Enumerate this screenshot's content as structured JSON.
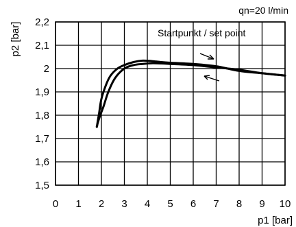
{
  "chart_data": {
    "type": "line",
    "title": "qn=20 l/min",
    "xlabel": "p1 [bar]",
    "ylabel": "p2 [bar]",
    "xlim": [
      0,
      10
    ],
    "ylim": [
      1.5,
      2.2
    ],
    "x_ticks": [
      "0",
      "1",
      "2",
      "3",
      "4",
      "5",
      "6",
      "7",
      "8",
      "9",
      "10"
    ],
    "y_ticks": [
      "1,5",
      "1,6",
      "1,7",
      "1,8",
      "1,9",
      "2",
      "2,1",
      "2,2"
    ],
    "grid": true,
    "annotation": "Startpunkt / set point",
    "series": [
      {
        "x": [
          10,
          9,
          8,
          7,
          6,
          5,
          4.6,
          4.2,
          3.8,
          3.4,
          3.0,
          2.6,
          2.3,
          2.1,
          1.95,
          1.85,
          1.8
        ],
        "y": [
          1.97,
          1.98,
          1.995,
          2.005,
          2.015,
          2.02,
          2.022,
          2.023,
          2.02,
          2.015,
          2.0,
          1.96,
          1.9,
          1.84,
          1.8,
          1.77,
          1.75
        ]
      },
      {
        "x": [
          1.8,
          1.9,
          2.0,
          2.2,
          2.4,
          2.7,
          3.0,
          3.4,
          3.8,
          4.2,
          4.6,
          5,
          6,
          7,
          8,
          9,
          10
        ],
        "y": [
          1.75,
          1.81,
          1.87,
          1.93,
          1.97,
          2.0,
          2.015,
          2.028,
          2.034,
          2.032,
          2.028,
          2.025,
          2.02,
          2.01,
          1.99,
          1.98,
          1.97
        ]
      }
    ]
  }
}
